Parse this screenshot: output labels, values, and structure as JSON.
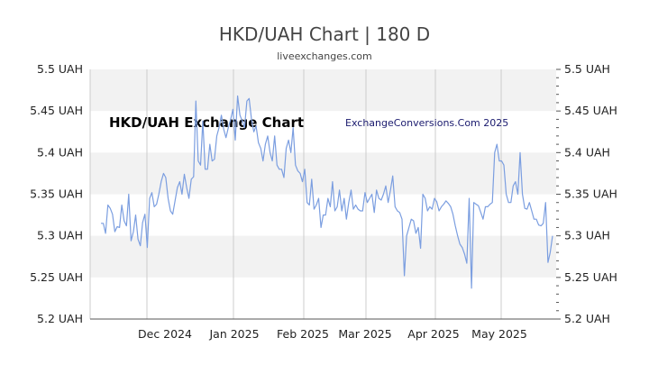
{
  "header": {
    "title": "HKD/UAH Chart | 180 D",
    "subtitle": "liveexchanges.com"
  },
  "chart_data": {
    "type": "line",
    "title": "HKD/UAH Chart | 180 D",
    "subtitle": "liveexchanges.com",
    "xlabel": "",
    "ylabel": "",
    "ylim": [
      5.2,
      5.5
    ],
    "y_ticks": [
      "5.5 UAH",
      "5.45 UAH",
      "5.4 UAH",
      "5.35 UAH",
      "5.3 UAH",
      "5.25 UAH",
      "5.2 UAH"
    ],
    "x_ticks": [
      "Dec 2024",
      "Jan 2025",
      "Feb 2025",
      "Mar 2025",
      "Apr 2025",
      "May 2025"
    ],
    "grid": true,
    "line_color": "#7b9ee0",
    "band_color": "#f2f2f2",
    "annotations": [
      "HKD/UAH Exchange Chart",
      "ExchangeConversions.Com 2025"
    ],
    "series": [
      {
        "values": [
          5.315,
          5.315,
          5.303,
          5.337,
          5.333,
          5.326,
          5.305,
          5.311,
          5.31,
          5.337,
          5.318,
          5.312,
          5.35,
          5.294,
          5.305,
          5.325,
          5.296,
          5.288,
          5.316,
          5.326,
          5.286,
          5.345,
          5.352,
          5.335,
          5.338,
          5.35,
          5.365,
          5.375,
          5.37,
          5.345,
          5.33,
          5.326,
          5.342,
          5.358,
          5.365,
          5.35,
          5.374,
          5.358,
          5.345,
          5.368,
          5.371,
          5.462,
          5.39,
          5.385,
          5.438,
          5.38,
          5.38,
          5.41,
          5.39,
          5.392,
          5.42,
          5.43,
          5.445,
          5.428,
          5.418,
          5.43,
          5.44,
          5.452,
          5.415,
          5.468,
          5.445,
          5.438,
          5.43,
          5.462,
          5.465,
          5.44,
          5.425,
          5.432,
          5.412,
          5.405,
          5.39,
          5.41,
          5.42,
          5.4,
          5.39,
          5.42,
          5.385,
          5.38,
          5.38,
          5.37,
          5.405,
          5.415,
          5.4,
          5.43,
          5.385,
          5.378,
          5.375,
          5.365,
          5.38,
          5.34,
          5.337,
          5.368,
          5.332,
          5.337,
          5.345,
          5.31,
          5.325,
          5.325,
          5.345,
          5.335,
          5.365,
          5.33,
          5.335,
          5.355,
          5.33,
          5.345,
          5.32,
          5.34,
          5.355,
          5.332,
          5.337,
          5.332,
          5.33,
          5.33,
          5.352,
          5.34,
          5.345,
          5.35,
          5.328,
          5.355,
          5.345,
          5.343,
          5.35,
          5.36,
          5.34,
          5.355,
          5.372,
          5.335,
          5.33,
          5.328,
          5.32,
          5.252,
          5.3,
          5.31,
          5.32,
          5.318,
          5.303,
          5.31,
          5.285,
          5.35,
          5.345,
          5.33,
          5.335,
          5.332,
          5.345,
          5.341,
          5.33,
          5.335,
          5.338,
          5.342,
          5.339,
          5.335,
          5.326,
          5.312,
          5.3,
          5.29,
          5.286,
          5.278,
          5.267,
          5.345,
          5.237,
          5.34,
          5.338,
          5.336,
          5.328,
          5.32,
          5.335,
          5.335,
          5.338,
          5.34,
          5.4,
          5.41,
          5.39,
          5.39,
          5.385,
          5.35,
          5.34,
          5.34,
          5.36,
          5.365,
          5.35,
          5.4,
          5.35,
          5.333,
          5.332,
          5.34,
          5.33,
          5.32,
          5.32,
          5.313,
          5.312,
          5.315,
          5.34,
          5.268,
          5.28,
          5.3
        ]
      }
    ]
  }
}
